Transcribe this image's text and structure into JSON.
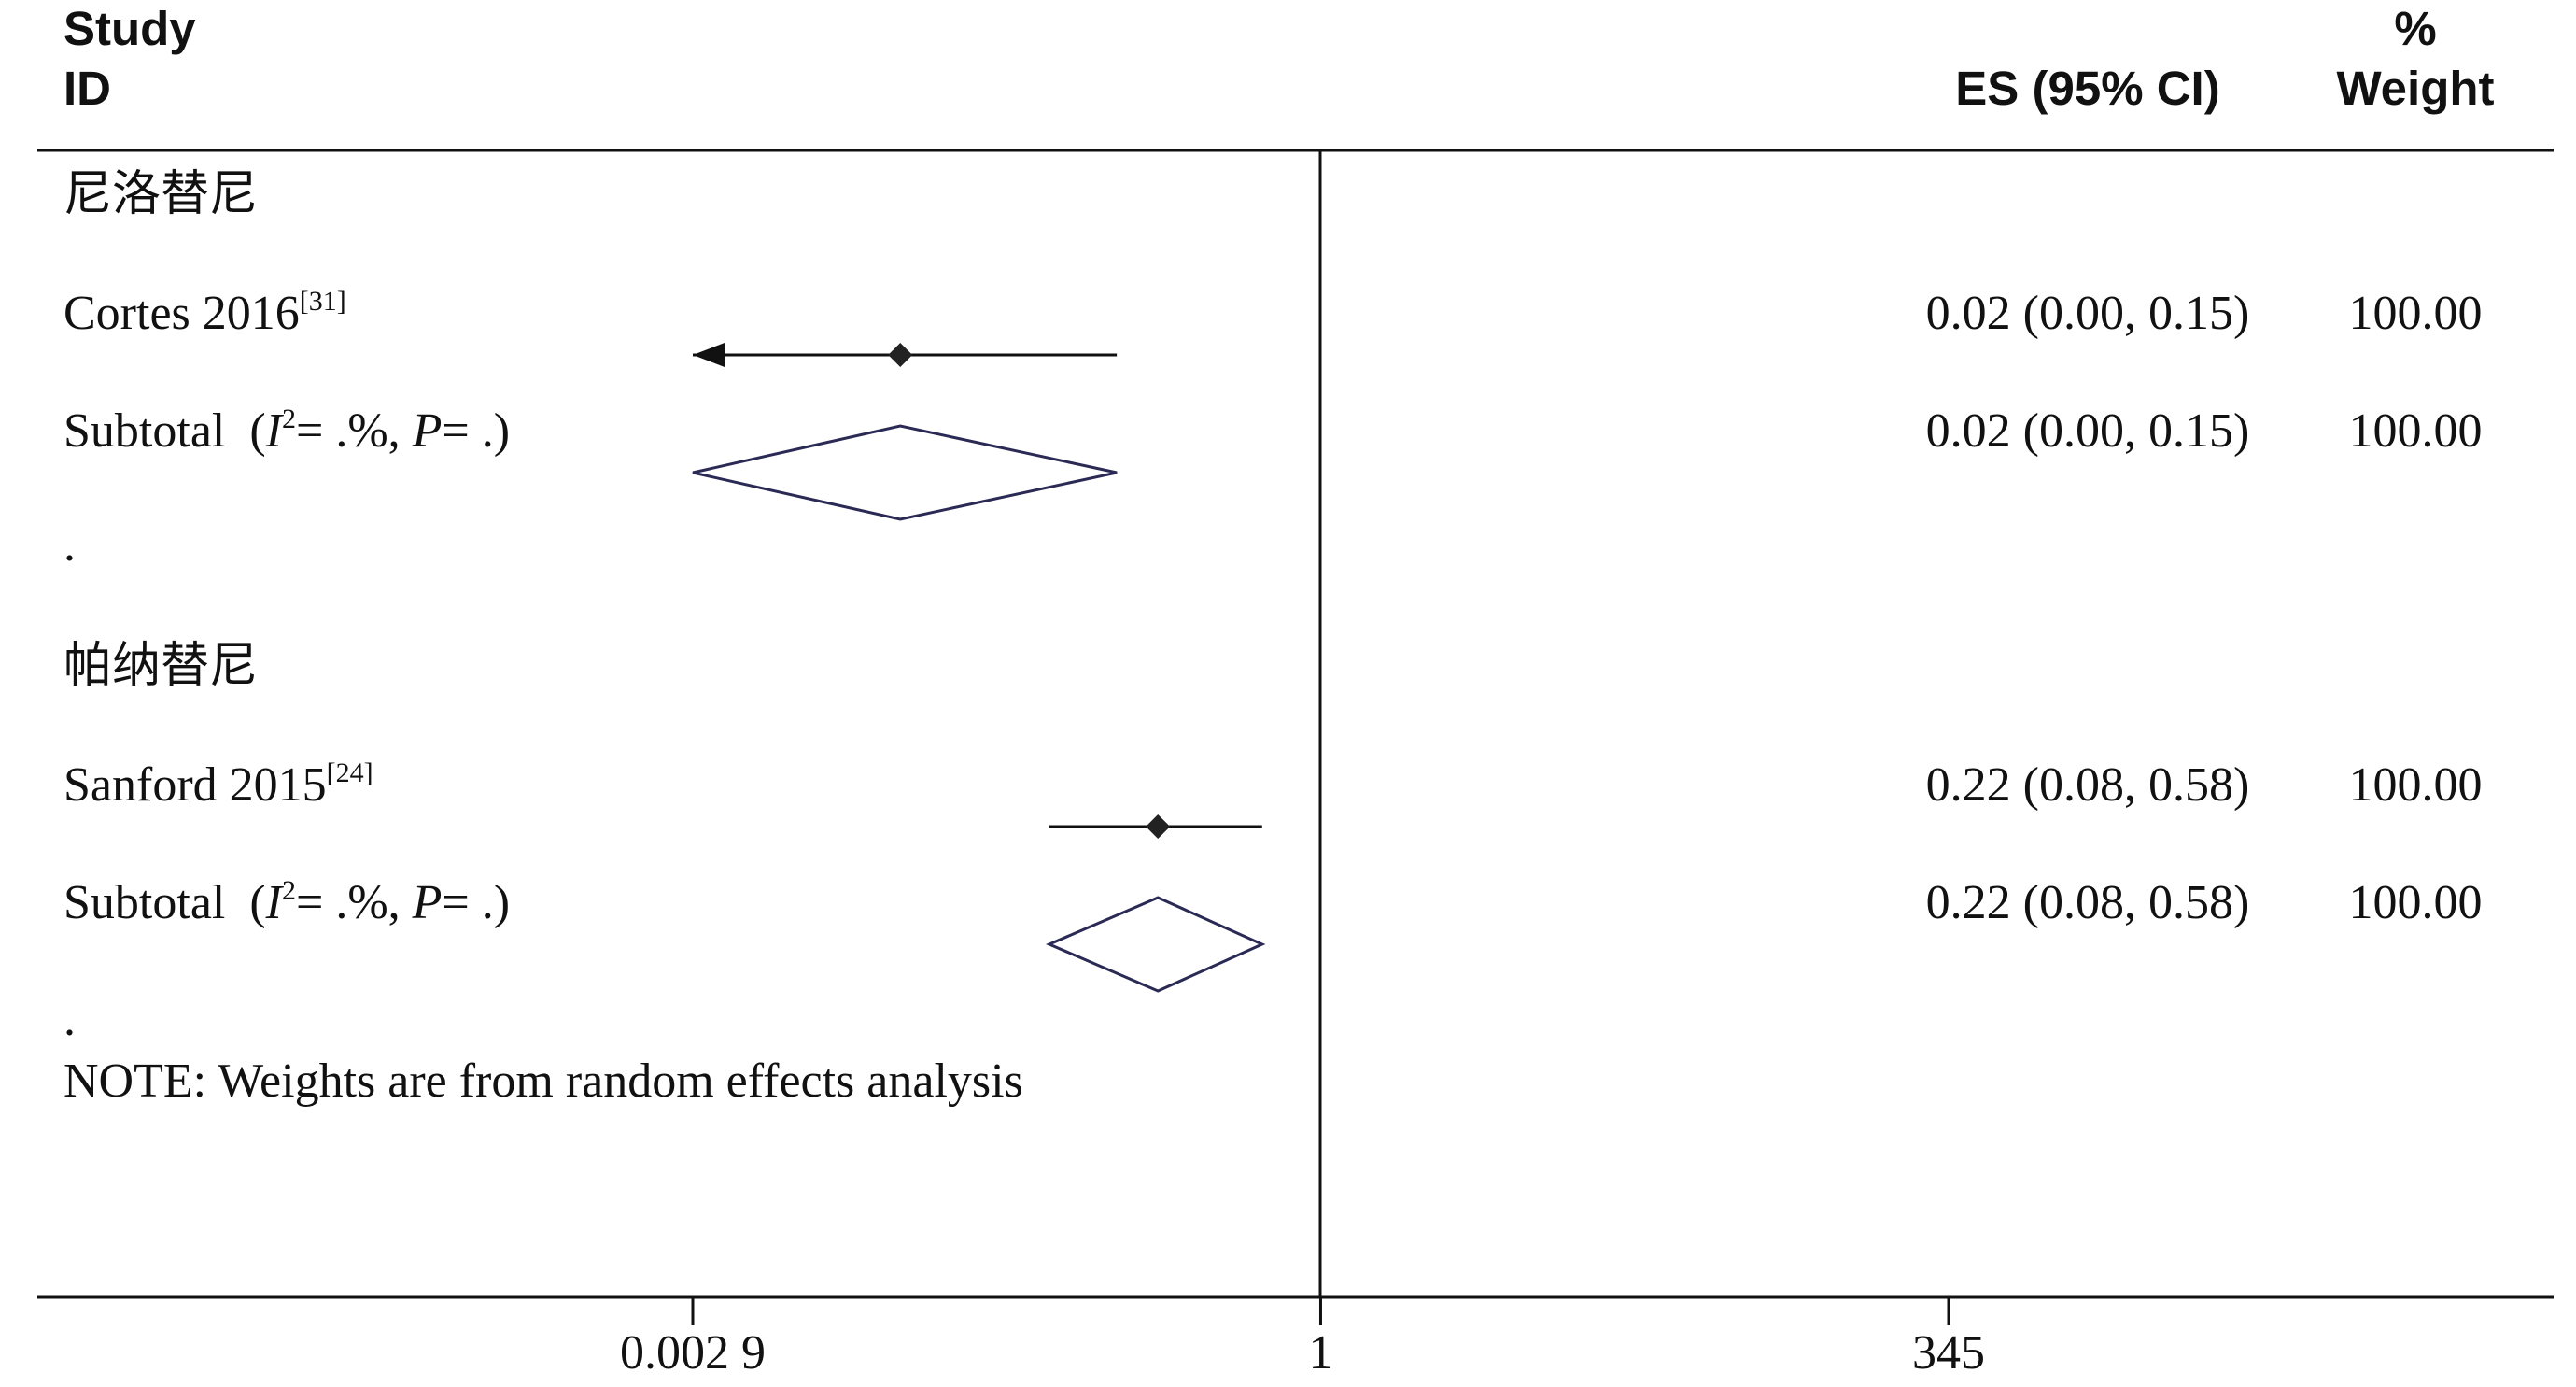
{
  "header": {
    "study_line1": "Study",
    "study_line2": "ID",
    "es_label": "ES (95% CI)",
    "weight_line1": "%",
    "weight_line2": "Weight"
  },
  "groups": [
    {
      "name": "尼洛替尼",
      "studies": [
        {
          "label": "Cortes 2016",
          "ref": "[31]",
          "es_ci": "0.02 (0.00, 0.15)",
          "weight": "100.00"
        }
      ],
      "subtotal": {
        "label": "Subtotal",
        "i2": ".%",
        "p": ".",
        "es_ci": "0.02 (0.00, 0.15)",
        "weight": "100.00"
      },
      "separator": "."
    },
    {
      "name": "帕纳替尼",
      "studies": [
        {
          "label": "Sanford 2015",
          "ref": "[24]",
          "es_ci": "0.22 (0.08, 0.58)",
          "weight": "100.00"
        }
      ],
      "subtotal": {
        "label": "Subtotal",
        "i2": ".%",
        "p": ".",
        "es_ci": "0.22 (0.08, 0.58)",
        "weight": "100.00"
      },
      "separator": "."
    }
  ],
  "note": "NOTE: Weights are from random effects analysis",
  "x_ticks": [
    "0.002 9",
    "1",
    "345"
  ],
  "colors": {
    "diamond_stroke": "#2a2a55",
    "line": "#111111"
  },
  "chart_data": {
    "type": "forest",
    "x_scale": "log",
    "xlim": [
      0.0029,
      345
    ],
    "ticks": [
      0.0029,
      1,
      345
    ],
    "tick_labels": [
      "0.002 9",
      "1",
      "345"
    ],
    "null_line": 1,
    "rows": [
      {
        "kind": "group",
        "label": "尼洛替尼"
      },
      {
        "kind": "study",
        "label": "Cortes 2016",
        "es": 0.02,
        "lo": 0.0,
        "hi": 0.15,
        "lo_arrow": true,
        "weight": 100.0
      },
      {
        "kind": "subtotal",
        "label": "Subtotal",
        "es": 0.02,
        "lo": 0.0,
        "hi": 0.15,
        "weight": 100.0
      },
      {
        "kind": "group",
        "label": "帕纳替尼"
      },
      {
        "kind": "study",
        "label": "Sanford 2015",
        "es": 0.22,
        "lo": 0.08,
        "hi": 0.58,
        "weight": 100.0
      },
      {
        "kind": "subtotal",
        "label": "Subtotal",
        "es": 0.22,
        "lo": 0.08,
        "hi": 0.58,
        "weight": 100.0
      }
    ]
  }
}
